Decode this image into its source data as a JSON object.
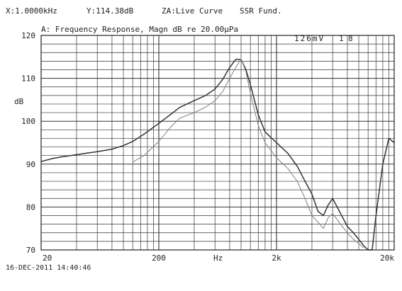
{
  "header": {
    "x_readout": "X:1.0000kHz",
    "y_readout": "Y:114.38dB",
    "za": "ZA:Live Curve",
    "mode": "SSR Fund."
  },
  "timestamp": "16-DEC-2011 14:40:46",
  "chart_data": {
    "type": "line",
    "title": "A: Frequency Response, Magn dB re 20.00µPa",
    "ylabel": "dB",
    "xlabel": "Hz",
    "xscale": "log",
    "xlim": [
      20,
      20000
    ],
    "ylim": [
      70,
      120
    ],
    "x_ticks": [
      20,
      200,
      2000,
      20000
    ],
    "x_tick_labels": [
      "20",
      "200",
      "2k",
      "20k"
    ],
    "y_ticks": [
      70,
      80,
      90,
      100,
      110,
      120
    ],
    "y_tick_labels": [
      "70",
      "80",
      "90",
      "100",
      "110",
      "120"
    ],
    "annotations": [
      "126mV",
      "1",
      "8"
    ],
    "grid": true,
    "series": [
      {
        "color": "#333333",
        "x": [
          20,
          25,
          30,
          40,
          50,
          60,
          80,
          100,
          120,
          150,
          200,
          250,
          300,
          400,
          500,
          600,
          700,
          800,
          900,
          1000,
          1100,
          1200,
          1400,
          1600,
          2000,
          2500,
          3000,
          3500,
          4000,
          4500,
          5000,
          5500,
          6000,
          7000,
          8000,
          9000,
          10000,
          11000,
          12000,
          13000,
          14000,
          16000,
          18000,
          20000
        ],
        "y": [
          90.6,
          91.3,
          91.7,
          92.2,
          92.6,
          92.9,
          93.5,
          94.3,
          95.3,
          97.0,
          99.5,
          101.5,
          103.2,
          104.8,
          106.0,
          107.5,
          109.8,
          112.5,
          114.4,
          114.4,
          112.0,
          108.5,
          101.5,
          97.5,
          95.0,
          92.5,
          89.5,
          86.0,
          83.0,
          79.0,
          78.0,
          80.5,
          82.0,
          78.5,
          75.5,
          74.0,
          72.5,
          71.0,
          70.0,
          70.0,
          78.0,
          90.0,
          96.0,
          95.0
        ]
      },
      {
        "color": "#8a8a8a",
        "x": [
          120,
          150,
          200,
          250,
          300,
          400,
          500,
          600,
          700,
          800,
          900,
          1000,
          1100,
          1200,
          1400,
          1600,
          2000,
          2500,
          3000,
          3500,
          4000,
          4500,
          5000,
          5500,
          6000,
          7000,
          8000,
          9000,
          10000,
          11000
        ],
        "y": [
          90.5,
          92.0,
          95.3,
          98.5,
          100.7,
          102.0,
          103.3,
          104.8,
          107.0,
          110.0,
          112.5,
          114.5,
          111.5,
          106.5,
          99.0,
          95.0,
          91.5,
          89.0,
          86.0,
          82.0,
          78.0,
          76.5,
          75.0,
          77.5,
          78.5,
          76.0,
          74.0,
          72.5,
          71.5,
          70.5
        ]
      }
    ]
  }
}
